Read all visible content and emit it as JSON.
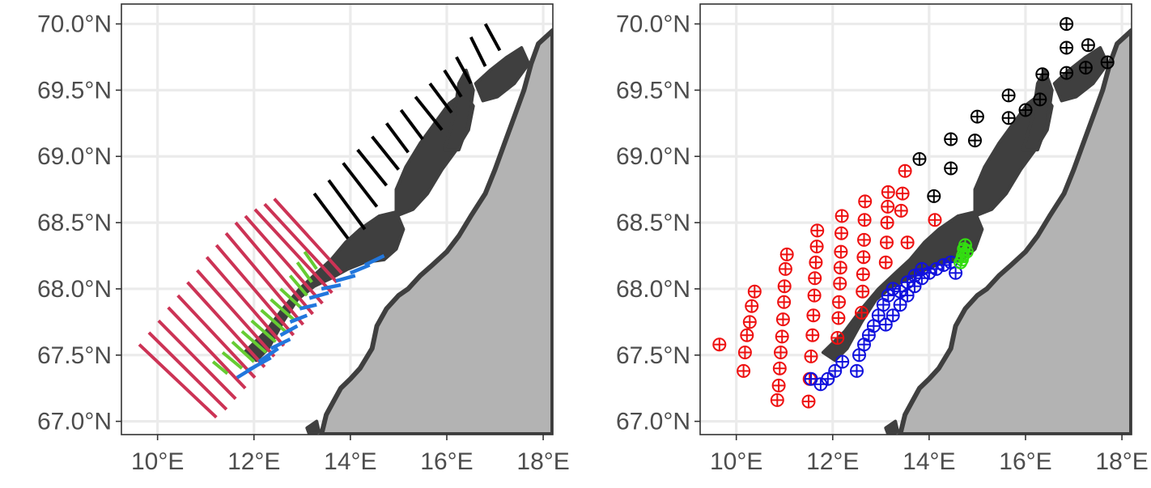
{
  "colors": {
    "land_fill": "#b3b3b3",
    "coast_line": "#3f3f3f",
    "grid": "#ebebeb",
    "transect_red": "#cc3355",
    "transect_green": "#66cc33",
    "transect_blue": "#2277dd",
    "transect_black": "#000000",
    "station_red": "#ee1111",
    "station_blue": "#1111dd",
    "station_green": "#33dd11",
    "station_black": "#000000"
  },
  "axes": {
    "x_ticks": [
      "10°E",
      "12°E",
      "14°E",
      "16°E",
      "18°E"
    ],
    "x_values": [
      10,
      12,
      14,
      16,
      18
    ],
    "y_ticks": [
      "67.0°N",
      "67.5°N",
      "68.0°N",
      "68.5°N",
      "69.0°N",
      "69.5°N",
      "70.0°N"
    ],
    "y_values": [
      67.0,
      67.5,
      68.0,
      68.5,
      69.0,
      69.5,
      70.0
    ],
    "lon_range": [
      9.25,
      18.2
    ],
    "lat_range": [
      66.9,
      70.15
    ]
  },
  "chart_data": [
    {
      "type": "scatter",
      "panel": "left",
      "marker": "line-segment",
      "grid": true,
      "series": [
        {
          "color": "transect_red",
          "segments": [
            [
              [
                9.62,
                67.58
              ],
              [
                11.22,
                67.03
              ]
            ],
            [
              [
                9.82,
                67.67
              ],
              [
                11.43,
                67.09
              ]
            ],
            [
              [
                10.02,
                67.76
              ],
              [
                11.62,
                67.17
              ]
            ],
            [
              [
                10.22,
                67.86
              ],
              [
                11.82,
                67.25
              ]
            ],
            [
              [
                10.42,
                67.95
              ],
              [
                12.02,
                67.33
              ]
            ],
            [
              [
                10.62,
                68.05
              ],
              [
                12.22,
                67.41
              ]
            ],
            [
              [
                10.82,
                68.14
              ],
              [
                12.42,
                67.49
              ]
            ],
            [
              [
                11.02,
                68.24
              ],
              [
                12.62,
                67.57
              ]
            ],
            [
              [
                11.22,
                68.33
              ],
              [
                12.82,
                67.65
              ]
            ],
            [
              [
                11.42,
                68.42
              ],
              [
                13.02,
                67.73
              ]
            ],
            [
              [
                11.62,
                68.5
              ],
              [
                13.22,
                67.81
              ]
            ],
            [
              [
                11.82,
                68.55
              ],
              [
                13.42,
                67.89
              ]
            ],
            [
              [
                12.02,
                68.6
              ],
              [
                13.62,
                67.97
              ]
            ],
            [
              [
                12.22,
                68.64
              ],
              [
                13.72,
                68.05
              ]
            ],
            [
              [
                12.42,
                68.68
              ],
              [
                13.82,
                68.12
              ]
            ]
          ]
        },
        {
          "color": "transect_green",
          "segments": [
            [
              [
                11.15,
                67.45
              ],
              [
                11.45,
                67.36
              ]
            ],
            [
              [
                11.35,
                67.52
              ],
              [
                11.75,
                67.4
              ]
            ],
            [
              [
                11.55,
                67.6
              ],
              [
                12.0,
                67.45
              ]
            ],
            [
              [
                11.75,
                67.68
              ],
              [
                12.25,
                67.52
              ]
            ],
            [
              [
                11.95,
                67.76
              ],
              [
                12.45,
                67.6
              ]
            ],
            [
              [
                12.15,
                67.84
              ],
              [
                12.65,
                67.68
              ]
            ],
            [
              [
                12.35,
                67.92
              ],
              [
                12.85,
                67.76
              ]
            ],
            [
              [
                12.55,
                68.0
              ],
              [
                13.0,
                67.85
              ]
            ],
            [
              [
                12.75,
                68.1
              ],
              [
                13.1,
                67.95
              ]
            ],
            [
              [
                12.9,
                68.2
              ],
              [
                13.2,
                68.05
              ]
            ],
            [
              [
                13.05,
                68.28
              ],
              [
                13.3,
                68.15
              ]
            ]
          ]
        },
        {
          "color": "transect_blue",
          "segments": [
            [
              [
                11.65,
                67.33
              ],
              [
                12.05,
                67.42
              ]
            ],
            [
              [
                11.85,
                67.38
              ],
              [
                12.35,
                67.48
              ]
            ],
            [
              [
                12.1,
                67.45
              ],
              [
                12.5,
                67.55
              ]
            ],
            [
              [
                12.35,
                67.55
              ],
              [
                12.75,
                67.62
              ]
            ],
            [
              [
                12.55,
                67.65
              ],
              [
                12.9,
                67.72
              ]
            ],
            [
              [
                12.75,
                67.75
              ],
              [
                13.1,
                67.8
              ]
            ],
            [
              [
                12.95,
                67.85
              ],
              [
                13.3,
                67.88
              ]
            ],
            [
              [
                13.15,
                67.93
              ],
              [
                13.55,
                67.97
              ]
            ],
            [
              [
                13.4,
                68.0
              ],
              [
                13.8,
                68.03
              ]
            ],
            [
              [
                13.7,
                68.06
              ],
              [
                14.1,
                68.1
              ]
            ],
            [
              [
                14.0,
                68.12
              ],
              [
                14.4,
                68.18
              ]
            ],
            [
              [
                14.3,
                68.18
              ],
              [
                14.7,
                68.25
              ]
            ]
          ]
        },
        {
          "color": "transect_black",
          "segments": [
            [
              [
                13.25,
                68.72
              ],
              [
                13.95,
                68.38
              ]
            ],
            [
              [
                13.55,
                68.82
              ],
              [
                14.3,
                68.45
              ]
            ],
            [
              [
                13.85,
                68.95
              ],
              [
                14.55,
                68.62
              ]
            ],
            [
              [
                14.15,
                69.05
              ],
              [
                14.75,
                68.78
              ]
            ],
            [
              [
                14.45,
                69.15
              ],
              [
                15.0,
                68.9
              ]
            ],
            [
              [
                14.75,
                69.25
              ],
              [
                15.2,
                69.03
              ]
            ],
            [
              [
                15.05,
                69.35
              ],
              [
                15.5,
                69.13
              ]
            ],
            [
              [
                15.35,
                69.45
              ],
              [
                15.9,
                69.2
              ]
            ],
            [
              [
                15.65,
                69.55
              ],
              [
                16.1,
                69.33
              ]
            ],
            [
              [
                15.95,
                69.65
              ],
              [
                16.3,
                69.45
              ]
            ],
            [
              [
                16.2,
                69.75
              ],
              [
                16.5,
                69.55
              ]
            ],
            [
              [
                16.5,
                69.9
              ],
              [
                16.8,
                69.68
              ]
            ],
            [
              [
                16.8,
                70.0
              ],
              [
                17.1,
                69.8
              ]
            ]
          ]
        }
      ]
    },
    {
      "type": "scatter",
      "panel": "right",
      "marker": "circled-plus",
      "grid": true,
      "series": [
        {
          "color": "station_red",
          "points": [
            [
              9.65,
              67.58
            ],
            [
              10.15,
              67.38
            ],
            [
              10.18,
              67.52
            ],
            [
              10.22,
              67.65
            ],
            [
              10.28,
              67.75
            ],
            [
              10.32,
              67.87
            ],
            [
              10.38,
              67.98
            ],
            [
              10.85,
              67.16
            ],
            [
              10.88,
              67.27
            ],
            [
              10.9,
              67.4
            ],
            [
              10.92,
              67.52
            ],
            [
              10.95,
              67.64
            ],
            [
              10.97,
              67.77
            ],
            [
              10.99,
              67.9
            ],
            [
              11.0,
              68.02
            ],
            [
              11.02,
              68.15
            ],
            [
              11.05,
              68.26
            ],
            [
              11.5,
              67.15
            ],
            [
              11.52,
              67.32
            ],
            [
              11.55,
              67.49
            ],
            [
              11.58,
              67.65
            ],
            [
              11.6,
              67.8
            ],
            [
              11.62,
              67.95
            ],
            [
              11.63,
              68.08
            ],
            [
              11.65,
              68.2
            ],
            [
              11.67,
              68.32
            ],
            [
              11.68,
              68.44
            ],
            [
              12.1,
              67.63
            ],
            [
              12.12,
              67.78
            ],
            [
              12.13,
              67.9
            ],
            [
              12.15,
              68.04
            ],
            [
              12.16,
              68.16
            ],
            [
              12.17,
              68.28
            ],
            [
              12.18,
              68.42
            ],
            [
              12.19,
              68.55
            ],
            [
              12.6,
              67.82
            ],
            [
              12.62,
              67.98
            ],
            [
              12.63,
              68.11
            ],
            [
              12.64,
              68.24
            ],
            [
              12.65,
              68.37
            ],
            [
              12.66,
              68.52
            ],
            [
              12.67,
              68.66
            ],
            [
              13.1,
              68.2
            ],
            [
              13.12,
              68.35
            ],
            [
              13.13,
              68.5
            ],
            [
              13.14,
              68.62
            ],
            [
              13.15,
              68.73
            ],
            [
              13.42,
              68.59
            ],
            [
              13.45,
              68.72
            ],
            [
              13.5,
              68.89
            ],
            [
              13.55,
              68.35
            ],
            [
              14.12,
              68.52
            ]
          ]
        },
        {
          "color": "station_blue",
          "points": [
            [
              11.55,
              67.32
            ],
            [
              11.75,
              67.28
            ],
            [
              11.9,
              67.32
            ],
            [
              12.05,
              67.38
            ],
            [
              12.2,
              67.45
            ],
            [
              12.5,
              67.38
            ],
            [
              12.55,
              67.5
            ],
            [
              12.65,
              67.58
            ],
            [
              12.75,
              67.65
            ],
            [
              12.85,
              67.72
            ],
            [
              12.95,
              67.8
            ],
            [
              13.05,
              67.88
            ],
            [
              13.15,
              67.95
            ],
            [
              13.25,
              68.0
            ],
            [
              13.1,
              67.73
            ],
            [
              13.25,
              67.8
            ],
            [
              13.4,
              67.88
            ],
            [
              13.55,
              67.95
            ],
            [
              13.7,
              68.02
            ],
            [
              13.85,
              68.08
            ],
            [
              14.0,
              68.12
            ],
            [
              14.15,
              68.15
            ],
            [
              14.3,
              68.18
            ],
            [
              14.45,
              68.2
            ],
            [
              14.55,
              68.12
            ],
            [
              13.4,
              67.98
            ],
            [
              13.55,
              68.05
            ],
            [
              13.7,
              68.1
            ],
            [
              13.85,
              68.15
            ]
          ]
        },
        {
          "color": "station_green",
          "points": [
            [
              14.65,
              68.2
            ],
            [
              14.7,
              68.25
            ],
            [
              14.72,
              68.3
            ],
            [
              14.75,
              68.33
            ],
            [
              14.68,
              68.22
            ],
            [
              14.78,
              68.28
            ]
          ]
        },
        {
          "color": "station_black",
          "points": [
            [
              16.85,
              70.0
            ],
            [
              16.85,
              69.82
            ],
            [
              17.3,
              69.84
            ],
            [
              16.85,
              69.63
            ],
            [
              17.25,
              69.67
            ],
            [
              17.7,
              69.71
            ],
            [
              16.35,
              69.62
            ],
            [
              16.3,
              69.43
            ],
            [
              15.65,
              69.46
            ],
            [
              16.0,
              69.35
            ],
            [
              15.65,
              69.29
            ],
            [
              15.0,
              69.3
            ],
            [
              14.95,
              69.12
            ],
            [
              14.45,
              69.13
            ],
            [
              14.45,
              68.91
            ],
            [
              13.8,
              68.98
            ],
            [
              14.1,
              68.7
            ]
          ]
        }
      ]
    }
  ]
}
